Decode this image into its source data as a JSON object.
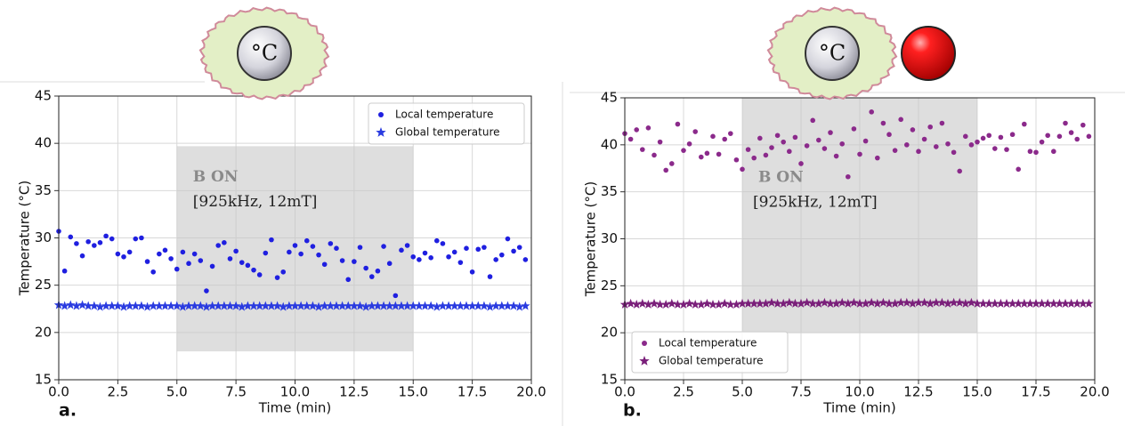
{
  "chart_data": [
    {
      "type": "scatter",
      "panel_label": "a.",
      "illustration_label": "°C",
      "xlabel": "Time (min)",
      "ylabel": "Temperature (°C)",
      "xlim": [
        0,
        20
      ],
      "ylim": [
        15,
        45
      ],
      "xticks": [
        {
          "value": 0,
          "label": "0.0"
        },
        2.5,
        {
          "value": 5,
          "label": "5.0"
        },
        7.5,
        {
          "value": 10,
          "label": "10.0"
        },
        12.5,
        {
          "value": 15,
          "label": "15.0"
        },
        17.5,
        {
          "value": 20,
          "label": "20.0"
        }
      ],
      "yticks": [
        15,
        20,
        25,
        30,
        35,
        40,
        45
      ],
      "grid": true,
      "legend": "upper right",
      "span": {
        "x": [
          5,
          15
        ],
        "y": [
          18,
          39.7
        ],
        "annotation_title": "B ON",
        "annotation": "[925kHz, 12mT]"
      },
      "x": [
        0,
        0.25,
        0.5,
        0.75,
        1,
        1.25,
        1.5,
        1.75,
        2,
        2.25,
        2.5,
        2.75,
        3,
        3.25,
        3.5,
        3.75,
        4,
        4.25,
        4.5,
        4.75,
        5,
        5.25,
        5.5,
        5.75,
        6,
        6.25,
        6.5,
        6.75,
        7,
        7.25,
        7.5,
        7.75,
        8,
        8.25,
        8.5,
        8.75,
        9,
        9.25,
        9.5,
        9.75,
        10,
        10.25,
        10.5,
        10.75,
        11,
        11.25,
        11.5,
        11.75,
        12,
        12.25,
        12.5,
        12.75,
        13,
        13.25,
        13.5,
        13.75,
        14,
        14.25,
        14.5,
        14.75,
        15,
        15.25,
        15.5,
        15.75,
        16,
        16.25,
        16.5,
        16.75,
        17,
        17.25,
        17.5,
        17.75,
        18,
        18.25,
        18.5,
        18.75,
        19,
        19.25,
        19.5,
        19.75
      ],
      "series": [
        {
          "name": "Local temperature",
          "marker": "circle",
          "color": "#1f1fe0",
          "values": [
            30.7,
            26.5,
            30.1,
            29.4,
            28.1,
            29.6,
            29.2,
            29.5,
            30.2,
            29.9,
            28.3,
            28.0,
            28.5,
            29.9,
            30.0,
            27.5,
            26.4,
            28.3,
            28.7,
            27.8,
            26.7,
            28.5,
            27.3,
            28.3,
            27.6,
            24.4,
            27.0,
            29.2,
            29.5,
            27.8,
            28.6,
            27.4,
            27.1,
            26.6,
            26.1,
            28.4,
            29.8,
            25.8,
            26.4,
            28.5,
            29.2,
            28.3,
            29.7,
            29.1,
            28.2,
            27.2,
            29.4,
            28.9,
            27.6,
            25.6,
            27.5,
            29.0,
            26.8,
            25.9,
            26.5,
            29.1,
            27.3,
            23.9,
            28.7,
            29.2,
            28.0,
            27.7,
            28.4,
            27.9,
            29.7,
            29.4,
            28.0,
            28.5,
            27.4,
            28.9,
            26.4,
            28.8,
            29.0,
            25.9,
            27.7,
            28.2,
            29.9,
            28.6,
            29.0,
            27.7
          ]
        },
        {
          "name": "Global temperature",
          "marker": "star",
          "color": "#2a3be0",
          "values": [
            22.9,
            22.8,
            22.9,
            22.8,
            22.9,
            22.8,
            22.8,
            22.7,
            22.8,
            22.8,
            22.8,
            22.7,
            22.8,
            22.8,
            22.8,
            22.7,
            22.8,
            22.8,
            22.8,
            22.8,
            22.8,
            22.7,
            22.8,
            22.8,
            22.8,
            22.7,
            22.8,
            22.8,
            22.8,
            22.8,
            22.8,
            22.7,
            22.8,
            22.8,
            22.8,
            22.8,
            22.8,
            22.8,
            22.7,
            22.8,
            22.8,
            22.8,
            22.8,
            22.8,
            22.7,
            22.8,
            22.8,
            22.8,
            22.8,
            22.8,
            22.8,
            22.8,
            22.7,
            22.8,
            22.8,
            22.8,
            22.8,
            22.8,
            22.8,
            22.8,
            22.8,
            22.8,
            22.8,
            22.8,
            22.7,
            22.8,
            22.8,
            22.8,
            22.8,
            22.8,
            22.8,
            22.8,
            22.8,
            22.7,
            22.8,
            22.8,
            22.8,
            22.8,
            22.7,
            22.8
          ]
        }
      ]
    },
    {
      "type": "scatter",
      "panel_label": "b.",
      "illustration_label": "°C",
      "xlabel": "Time (min)",
      "ylabel": "Temperature (°C)",
      "xlim": [
        0,
        20
      ],
      "ylim": [
        15,
        45
      ],
      "xticks": [
        {
          "value": 0,
          "label": "0.0"
        },
        2.5,
        {
          "value": 5,
          "label": "5.0"
        },
        7.5,
        {
          "value": 10,
          "label": "10.0"
        },
        12.5,
        {
          "value": 15,
          "label": "15.0"
        },
        17.5,
        {
          "value": 20,
          "label": "20.0"
        }
      ],
      "yticks": [
        15,
        20,
        25,
        30,
        35,
        40,
        45
      ],
      "grid": true,
      "legend": "lower left",
      "span": {
        "x": [
          5,
          15
        ],
        "y": [
          20,
          45
        ],
        "annotation_title": "B ON",
        "annotation": "[925kHz, 12mT]"
      },
      "x": [
        0,
        0.25,
        0.5,
        0.75,
        1,
        1.25,
        1.5,
        1.75,
        2,
        2.25,
        2.5,
        2.75,
        3,
        3.25,
        3.5,
        3.75,
        4,
        4.25,
        4.5,
        4.75,
        5,
        5.25,
        5.5,
        5.75,
        6,
        6.25,
        6.5,
        6.75,
        7,
        7.25,
        7.5,
        7.75,
        8,
        8.25,
        8.5,
        8.75,
        9,
        9.25,
        9.5,
        9.75,
        10,
        10.25,
        10.5,
        10.75,
        11,
        11.25,
        11.5,
        11.75,
        12,
        12.25,
        12.5,
        12.75,
        13,
        13.25,
        13.5,
        13.75,
        14,
        14.25,
        14.5,
        14.75,
        15,
        15.25,
        15.5,
        15.75,
        16,
        16.25,
        16.5,
        16.75,
        17,
        17.25,
        17.5,
        17.75,
        18,
        18.25,
        18.5,
        18.75,
        19,
        19.25,
        19.5,
        19.75
      ],
      "series": [
        {
          "name": "Local temperature",
          "marker": "circle",
          "color": "#8b2a8b",
          "values": [
            41.2,
            40.6,
            41.6,
            39.5,
            41.8,
            38.9,
            40.3,
            37.3,
            38.0,
            42.2,
            39.4,
            40.1,
            41.4,
            38.7,
            39.1,
            40.9,
            39.0,
            40.6,
            41.2,
            38.4,
            37.4,
            39.5,
            38.6,
            40.7,
            38.9,
            39.7,
            41.0,
            40.3,
            39.3,
            40.8,
            38.0,
            39.9,
            42.6,
            40.5,
            39.6,
            41.3,
            38.8,
            40.1,
            36.6,
            41.7,
            39.0,
            40.4,
            43.5,
            38.6,
            42.3,
            41.1,
            39.4,
            42.7,
            40.0,
            41.6,
            39.3,
            40.6,
            41.9,
            39.8,
            42.3,
            40.1,
            39.2,
            37.2,
            40.9,
            40.0,
            40.3,
            40.7,
            41.0,
            39.6,
            40.8,
            39.5,
            41.1,
            37.4,
            42.2,
            39.3,
            39.2,
            40.3,
            41.0,
            39.3,
            40.9,
            42.3,
            41.3,
            40.6,
            42.1,
            40.9
          ]
        },
        {
          "name": "Global temperature",
          "marker": "star",
          "color": "#7a1f7a",
          "values": [
            23.0,
            23.1,
            23.0,
            23.1,
            23.0,
            23.1,
            23.0,
            23.0,
            23.1,
            23.0,
            23.0,
            23.1,
            23.0,
            23.0,
            23.1,
            23.0,
            23.0,
            23.1,
            23.0,
            23.0,
            23.1,
            23.1,
            23.1,
            23.1,
            23.1,
            23.2,
            23.1,
            23.1,
            23.2,
            23.1,
            23.1,
            23.2,
            23.1,
            23.1,
            23.2,
            23.1,
            23.1,
            23.2,
            23.1,
            23.2,
            23.1,
            23.1,
            23.2,
            23.1,
            23.2,
            23.1,
            23.1,
            23.2,
            23.2,
            23.1,
            23.2,
            23.2,
            23.1,
            23.2,
            23.2,
            23.1,
            23.2,
            23.2,
            23.1,
            23.2,
            23.1,
            23.1,
            23.1,
            23.1,
            23.1,
            23.1,
            23.1,
            23.1,
            23.1,
            23.1,
            23.1,
            23.1,
            23.1,
            23.1,
            23.1,
            23.1,
            23.1,
            23.1,
            23.1,
            23.1
          ]
        }
      ]
    }
  ]
}
